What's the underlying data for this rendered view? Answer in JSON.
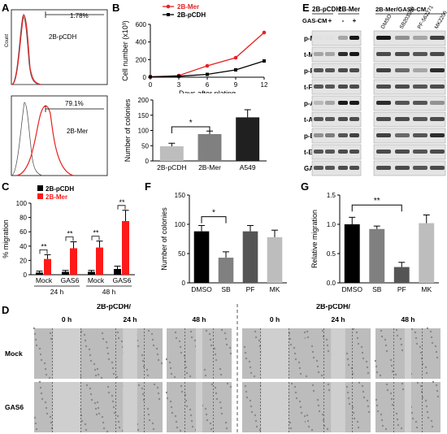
{
  "panel_labels": {
    "A": "A",
    "B": "B",
    "C": "C",
    "D": "D",
    "E": "E",
    "F": "F",
    "G": "G"
  },
  "panelA": {
    "top": {
      "label": "2B-pCDH",
      "pct": "1.78%",
      "ylabel": "Count"
    },
    "bottom": {
      "label": "2B-Mer",
      "pct": "79.1%"
    }
  },
  "chart_data": [
    {
      "id": "B-line",
      "type": "line",
      "x": [
        0,
        3,
        6,
        9,
        12
      ],
      "series": [
        {
          "name": "2B-Mer",
          "values": [
            5,
            20,
            140,
            240,
            550
          ],
          "color": "#e82020"
        },
        {
          "name": "2B-pCDH",
          "values": [
            5,
            12,
            35,
            90,
            200
          ],
          "color": "#000000"
        }
      ],
      "xticks": [
        "0",
        "3",
        "6",
        "9",
        "12"
      ],
      "yticks": [
        "0",
        "200",
        "400",
        "600"
      ],
      "ylim": [
        0,
        650
      ],
      "xlabel": "Days after plating",
      "ylabel": "Cell number (x10³)"
    },
    {
      "id": "B-bar",
      "type": "bar",
      "categories": [
        "2B-pCDH",
        "2B-Mer",
        "A549"
      ],
      "values": [
        48,
        88,
        143
      ],
      "errors": [
        10,
        10,
        25
      ],
      "colors": [
        "#bdbdbd",
        "#808080",
        "#202020"
      ],
      "yticks": [
        "0",
        "50",
        "100",
        "150",
        "200"
      ],
      "ylim": [
        0,
        200
      ],
      "ylabel": "Number of colonies",
      "sig": "*"
    },
    {
      "id": "C",
      "type": "bar",
      "groups": [
        "Mock",
        "GAS6",
        "Mock",
        "GAS6"
      ],
      "time_labels": [
        "24 h",
        "48 h"
      ],
      "series": [
        {
          "name": "2B-pCDH",
          "values": [
            3,
            4,
            4,
            8
          ],
          "errors": [
            2,
            2,
            2,
            4
          ],
          "color": "#000000"
        },
        {
          "name": "2B-Mer",
          "values": [
            22,
            37,
            38,
            75
          ],
          "errors": [
            6,
            9,
            9,
            15
          ],
          "color": "#ff1a1a"
        }
      ],
      "yticks": [
        "0",
        "20",
        "40",
        "60",
        "80",
        "100"
      ],
      "ylim": [
        0,
        100
      ],
      "ylabel": "% migration",
      "sig": "**"
    },
    {
      "id": "F",
      "type": "bar",
      "categories": [
        "DMSO",
        "SB",
        "PF",
        "MK"
      ],
      "values": [
        88,
        43,
        88,
        78
      ],
      "errors": [
        10,
        10,
        10,
        12
      ],
      "colors": [
        "#000000",
        "#808080",
        "#555555",
        "#bdbdbd"
      ],
      "yticks": [
        "0",
        "50",
        "100",
        "150"
      ],
      "ylim": [
        0,
        150
      ],
      "ylabel": "Number of colonies",
      "sig": "*"
    },
    {
      "id": "G",
      "type": "bar",
      "categories": [
        "DMSO",
        "SB",
        "PF",
        "MK"
      ],
      "values": [
        1.0,
        0.92,
        0.27,
        1.02
      ],
      "errors": [
        0.12,
        0.05,
        0.08,
        0.14
      ],
      "colors": [
        "#000000",
        "#808080",
        "#555555",
        "#bdbdbd"
      ],
      "yticks": [
        "0.0",
        "0.5",
        "1.0",
        "1.5"
      ],
      "ylim": [
        0,
        1.5
      ],
      "ylabel": "Relative migration",
      "sig": "**"
    }
  ],
  "panelD": {
    "group1": "2B-pCDH/",
    "group2": "2B-pCDH/",
    "times": [
      "0 h",
      "24 h",
      "48 h",
      "0 h",
      "24 h",
      "48 h"
    ],
    "rows": [
      "Mock",
      "GAS6"
    ]
  },
  "panelE": {
    "col_groups": [
      "2B-pCDH",
      "2B-Mer",
      "2B-Mer/GAS6-CM"
    ],
    "gas_label": "GAS-CM",
    "signs": [
      "-",
      "+",
      "-",
      "+"
    ],
    "inhibitors": [
      "DMSO",
      "SB203580",
      "PF-562271",
      "MK2206"
    ],
    "rows": [
      "p-Mer",
      "t-Mer",
      "p-FAK",
      "t-FAK",
      "p-AKT",
      "t-AKT",
      "p-ERK1/2",
      "t-ERK1/2",
      "GAPDH"
    ]
  }
}
